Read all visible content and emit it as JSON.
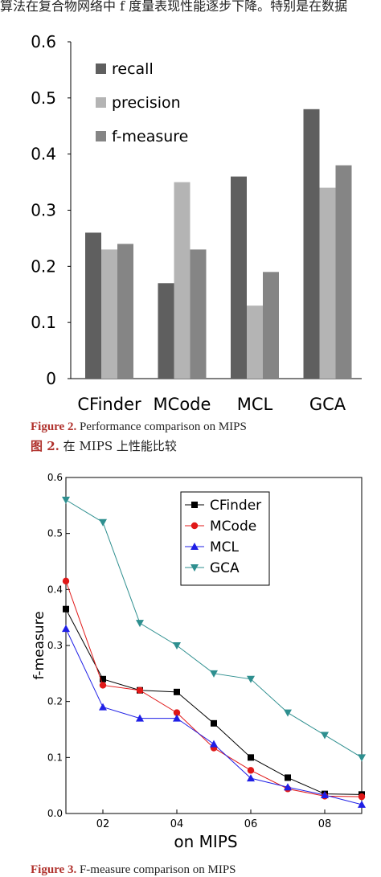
{
  "header_text": "算法在复合物网络中 f 度量表现性能逐步下降。特别是在数据",
  "figure2": {
    "caption_label": "Figure 2.",
    "caption_text": "Performance comparison on MIPS",
    "caption_zh_label": "图 2.",
    "caption_zh_text": "在 MIPS 上性能比较"
  },
  "figure3": {
    "caption_label": "Figure 3.",
    "caption_text": "F-measure comparison on MIPS"
  },
  "chart_data": [
    {
      "type": "bar",
      "categories": [
        "CFinder",
        "MCode",
        "MCL",
        "GCA"
      ],
      "series": [
        {
          "name": "recall",
          "values": [
            0.26,
            0.17,
            0.36,
            0.48
          ],
          "color": "#5f5f5f"
        },
        {
          "name": "precision",
          "values": [
            0.23,
            0.35,
            0.13,
            0.34
          ],
          "color": "#b4b4b4"
        },
        {
          "name": "f-measure",
          "values": [
            0.24,
            0.23,
            0.19,
            0.38
          ],
          "color": "#858585"
        }
      ],
      "ylim": [
        0,
        0.6
      ],
      "yticks": [
        "0",
        "0.1",
        "0.2",
        "0.3",
        "0.4",
        "0.5",
        "0.6"
      ],
      "legend_position": "top-left",
      "grid": false
    },
    {
      "type": "line",
      "x": [
        0.1,
        0.2,
        0.3,
        0.4,
        0.5,
        0.6,
        0.7,
        0.8,
        0.9
      ],
      "series": [
        {
          "name": "CFinder",
          "values": [
            0.365,
            0.24,
            0.22,
            0.217,
            0.161,
            0.1,
            0.064,
            0.035,
            0.034
          ],
          "color": "#000000",
          "marker": "square"
        },
        {
          "name": "MCode",
          "values": [
            0.415,
            0.229,
            0.22,
            0.18,
            0.117,
            0.077,
            0.044,
            0.031,
            0.03
          ],
          "color": "#e01818",
          "marker": "circle"
        },
        {
          "name": "MCL",
          "values": [
            0.33,
            0.19,
            0.17,
            0.17,
            0.124,
            0.063,
            0.047,
            0.033,
            0.016
          ],
          "color": "#1f1fe6",
          "marker": "triangle-up"
        },
        {
          "name": "GCA",
          "values": [
            0.56,
            0.52,
            0.34,
            0.3,
            0.25,
            0.24,
            0.18,
            0.14,
            0.1
          ],
          "color": "#2e8f8f",
          "marker": "triangle-down"
        }
      ],
      "xlim": [
        0.1,
        0.9
      ],
      "ylim": [
        0,
        0.6
      ],
      "xticks": [
        "02",
        "04",
        "06",
        "08"
      ],
      "yticks": [
        "0.0",
        "0.1",
        "0.2",
        "0.3",
        "0.4",
        "0.5",
        "0.6"
      ],
      "xlabel": "on MIPS",
      "ylabel": "f-measure",
      "legend_position": "top-right",
      "grid": false
    }
  ]
}
